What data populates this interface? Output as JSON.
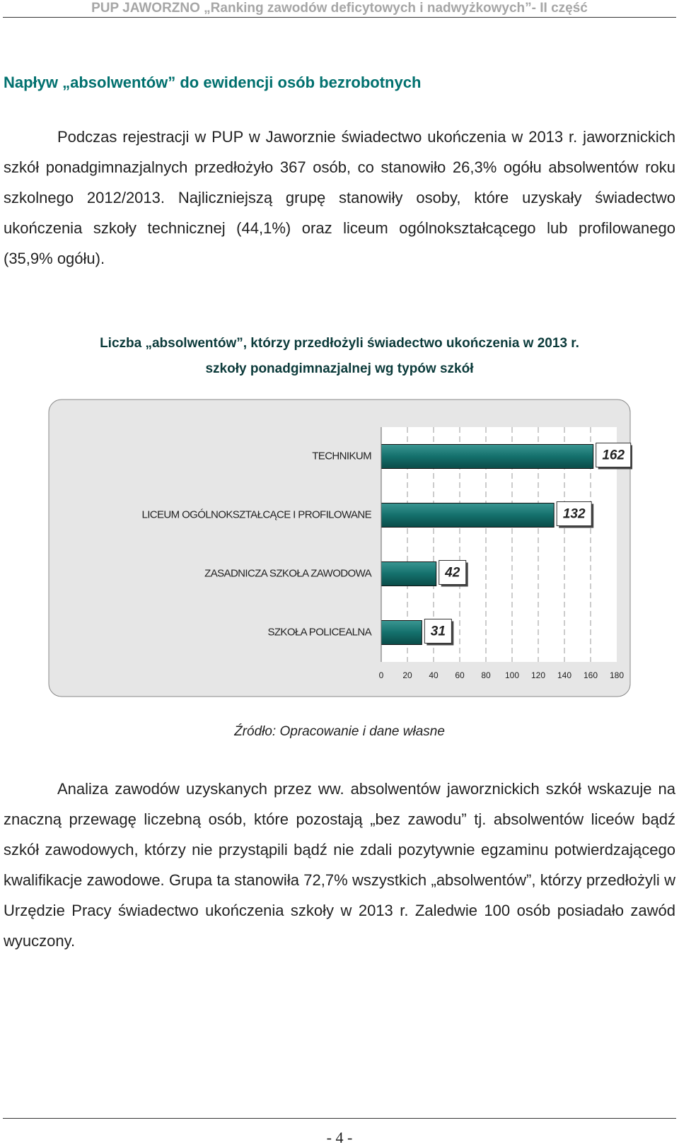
{
  "header": "PUP JAWORZNO „Ranking zawodów deficytowych i nadwyżkowych”- II część",
  "heading": "Napływ „absolwentów” do ewidencji osób bezrobotnych",
  "paragraph_1": "Podczas rejestracji w PUP w Jaworznie świadectwo ukończenia w 2013 r. jaworznickich szkół ponadgimnazjalnych przedłożyło 367 osób, co stanowiło 26,3% ogółu absolwentów roku szkolnego 2012/2013. Najliczniejszą grupę stanowiły osoby, które uzyskały świadectwo ukończenia szkoły technicznej (44,1%) oraz liceum ogólnokształcącego lub profilowanego (35,9% ogółu).",
  "chart_data": {
    "type": "bar",
    "orientation": "horizontal",
    "title": [
      "Liczba „absolwentów”, którzy przedłożyli świadectwo ukończenia w 2013 r.",
      "szkoły ponadgimnazjalnej  wg typów szkół"
    ],
    "categories": [
      "TECHNIKUM",
      "LICEUM OGÓLNOKSZTAŁCĄCE I PROFILOWANE",
      "ZASADNICZA SZKOŁA ZAWODOWA",
      "SZKOŁA POLICEALNA"
    ],
    "values": [
      162,
      132,
      42,
      31
    ],
    "color": "#14706c",
    "xlim": [
      0,
      180
    ],
    "xticks": [
      0,
      20,
      40,
      60,
      80,
      100,
      120,
      140,
      160,
      180
    ],
    "grid": true
  },
  "source": "Źródło: Opracowanie i dane własne",
  "paragraph_2": "Analiza zawodów uzyskanych przez ww. absolwentów jaworznickich szkół wskazuje na znaczną przewagę liczebną osób, które pozostają „bez zawodu” tj. absolwentów liceów bądź szkół zawodowych, którzy nie przystąpili bądź nie zdali pozytywnie egzaminu potwierdzającego kwalifikacje zawodowe. Grupa ta stanowiła 72,7% wszystkich „absolwentów”, którzy przedłożyli w Urzędzie Pracy świadectwo ukończenia szkoły w 2013 r. Zaledwie 100 osób posiadało zawód wyuczony.",
  "page_number": "- 4 -"
}
